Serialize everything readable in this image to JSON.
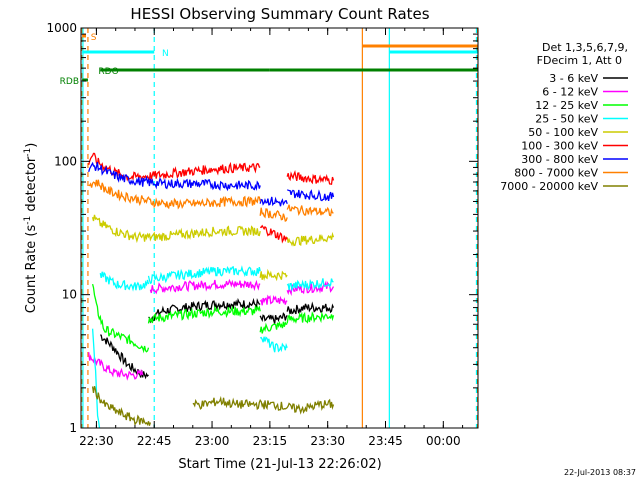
{
  "chart_data": {
    "type": "line",
    "title": "HESSI Observing Summary Count Rates",
    "xlabel": "Start Time (21-Jul-13 22:26:02)",
    "ylabel_main": "Count Rate (s",
    "ylabel_sup1": "-1",
    "ylabel_mid": " detector",
    "ylabel_sup2": "-1",
    "ylabel_end": ")",
    "y_scale": "log",
    "ylim": [
      1,
      1000
    ],
    "xlim_minutes": [
      0,
      103
    ],
    "x_ticks": [
      {
        "label": "22:30",
        "minutes": 4
      },
      {
        "label": "22:45",
        "minutes": 19
      },
      {
        "label": "23:00",
        "minutes": 34
      },
      {
        "label": "23:15",
        "minutes": 49
      },
      {
        "label": "23:30",
        "minutes": 64
      },
      {
        "label": "23:45",
        "minutes": 79
      },
      {
        "label": "00:00",
        "minutes": 94
      }
    ],
    "y_ticks": [
      {
        "label": "1",
        "value": 1
      },
      {
        "label": "10",
        "value": 10
      },
      {
        "label": "100",
        "value": 100
      },
      {
        "label": "1000",
        "value": 1000
      }
    ],
    "legend_header": [
      "Det 1,3,5,6,7,9,",
      "FDecim 1, Att 0"
    ],
    "legend_placement": "right",
    "series": [
      {
        "name": "3 - 6 keV",
        "color": "#000000",
        "segments": [
          [
            [
              5,
              5
            ],
            [
              8.5,
              4
            ],
            [
              12,
              3
            ],
            [
              16,
              2.5
            ],
            [
              17.5,
              2.5
            ]
          ],
          [
            [
              17.5,
              6.5
            ],
            [
              21,
              7.5
            ],
            [
              27,
              8
            ],
            [
              35,
              8.5
            ],
            [
              43,
              8.5
            ],
            [
              46.5,
              8.5
            ]
          ],
          [
            [
              46.5,
              6.5
            ],
            [
              51,
              6.5
            ],
            [
              53.5,
              7
            ]
          ],
          [
            [
              53.5,
              7.5
            ],
            [
              58,
              8
            ],
            [
              62,
              8
            ],
            [
              65.5,
              8
            ]
          ]
        ]
      },
      {
        "name": "6 - 12 keV",
        "color": "#ff00ff",
        "segments": [
          [
            [
              2,
              3.5
            ],
            [
              5,
              3
            ],
            [
              8.5,
              2.6
            ],
            [
              12,
              2.5
            ],
            [
              16,
              2.5
            ]
          ],
          [
            [
              18,
              11
            ],
            [
              25,
              11.5
            ],
            [
              35,
              12
            ],
            [
              46.5,
              12
            ]
          ],
          [
            [
              46.5,
              9
            ],
            [
              53.5,
              9
            ]
          ],
          [
            [
              53.5,
              11
            ],
            [
              65.5,
              11.5
            ]
          ]
        ]
      },
      {
        "name": "12 - 25 keV",
        "color": "#00ff00",
        "segments": [
          [
            [
              3,
              12
            ],
            [
              4,
              8
            ],
            [
              6,
              5.5
            ],
            [
              9,
              5
            ],
            [
              13,
              4.5
            ],
            [
              16.5,
              4
            ],
            [
              17.5,
              4
            ]
          ],
          [
            [
              17.5,
              6.5
            ],
            [
              25,
              7
            ],
            [
              35,
              7.5
            ],
            [
              46.5,
              7.5
            ]
          ],
          [
            [
              46.5,
              5.5
            ],
            [
              53.5,
              6
            ]
          ],
          [
            [
              53.5,
              6.5
            ],
            [
              65.5,
              7
            ]
          ]
        ]
      },
      {
        "name": "25 - 50 keV",
        "color": "#00ffff",
        "segments": [
          [
            [
              3,
              6
            ],
            [
              3.8,
              2.5
            ],
            [
              4.3,
              1.3
            ],
            [
              4.8,
              1
            ]
          ],
          [
            [
              5,
              14
            ],
            [
              9,
              12
            ],
            [
              14,
              11.5
            ],
            [
              17.5,
              12
            ]
          ],
          [
            [
              17.5,
              13
            ],
            [
              25,
              14
            ],
            [
              35,
              15
            ],
            [
              46.5,
              15
            ]
          ],
          [
            [
              46.5,
              5
            ],
            [
              50,
              4
            ],
            [
              53.5,
              4
            ]
          ],
          [
            [
              53.5,
              11.5
            ],
            [
              65.5,
              12.5
            ]
          ]
        ]
      },
      {
        "name": "50 - 100 keV",
        "color": "#cccc00",
        "segments": [
          [
            [
              3,
              38
            ],
            [
              5,
              34
            ],
            [
              9,
              30
            ],
            [
              14,
              27
            ],
            [
              19,
              27
            ],
            [
              25,
              28
            ],
            [
              35,
              30
            ],
            [
              46.5,
              30
            ]
          ],
          [
            [
              46.5,
              14
            ],
            [
              53.5,
              14
            ]
          ],
          [
            [
              53.5,
              25
            ],
            [
              60,
              26
            ],
            [
              65.5,
              27
            ]
          ]
        ]
      },
      {
        "name": "100 - 300 keV",
        "color": "#ff0000",
        "segments": [
          [
            [
              2,
              100
            ],
            [
              3,
              112
            ],
            [
              4,
              100
            ],
            [
              6,
              92
            ],
            [
              9,
              82
            ],
            [
              13,
              76
            ],
            [
              19,
              78
            ],
            [
              25,
              82
            ],
            [
              35,
              88
            ],
            [
              46.5,
              90
            ]
          ],
          [
            [
              46.5,
              32
            ],
            [
              51,
              28
            ],
            [
              53.5,
              26
            ]
          ],
          [
            [
              53.5,
              78
            ],
            [
              60,
              74
            ],
            [
              65.5,
              72
            ]
          ]
        ]
      },
      {
        "name": "300 - 800 keV",
        "color": "#0000ff",
        "segments": [
          [
            [
              2,
              90
            ],
            [
              4,
              92
            ],
            [
              7,
              82
            ],
            [
              11,
              74
            ],
            [
              16,
              70
            ],
            [
              22,
              68
            ],
            [
              30,
              68
            ],
            [
              40,
              66
            ],
            [
              46.5,
              66
            ]
          ],
          [
            [
              46.5,
              52
            ],
            [
              53.5,
              48
            ]
          ],
          [
            [
              53.5,
              58
            ],
            [
              65.5,
              54
            ]
          ]
        ]
      },
      {
        "name": "800 - 7000 keV",
        "color": "#ff8000",
        "segments": [
          [
            [
              2,
              68
            ],
            [
              4,
              70
            ],
            [
              7,
              60
            ],
            [
              11,
              55
            ],
            [
              16,
              51
            ],
            [
              22,
              48
            ],
            [
              30,
              48
            ],
            [
              40,
              50
            ],
            [
              46.5,
              50
            ]
          ],
          [
            [
              46.5,
              42
            ],
            [
              53.5,
              38
            ]
          ],
          [
            [
              53.5,
              44
            ],
            [
              65.5,
              41
            ]
          ]
        ]
      },
      {
        "name": "7000 - 20000 keV",
        "color": "#808000",
        "segments": [
          [
            [
              3,
              2
            ],
            [
              6,
              1.5
            ],
            [
              10,
              1.3
            ],
            [
              14,
              1.15
            ],
            [
              18,
              1.1
            ]
          ],
          [
            [
              29,
              1.5
            ],
            [
              32,
              1.5
            ],
            [
              36,
              1.6
            ],
            [
              40,
              1.5
            ],
            [
              44,
              1.5
            ],
            [
              50,
              1.5
            ],
            [
              55,
              1.4
            ],
            [
              58,
              1.4
            ],
            [
              62,
              1.5
            ],
            [
              65.5,
              1.5
            ]
          ]
        ]
      }
    ],
    "flag_lines": [
      {
        "label": "S",
        "color": "#ff8000",
        "y_rel": 0.02,
        "segments": [
          [
            0.3,
            1.3
          ]
        ],
        "label_at": 2
      },
      {
        "label": "N",
        "color": "#00ffff",
        "y_rel": 0.06,
        "segments": [
          [
            0.3,
            19
          ],
          [
            80,
            103
          ]
        ],
        "label_at": 20.5
      },
      {
        "label": "RDO",
        "color": "#008000",
        "y_rel": 0.105,
        "segments": [
          [
            5,
            49
          ],
          [
            49,
            55
          ],
          [
            55,
            103
          ]
        ],
        "label_at": 4
      },
      {
        "label": "RDB",
        "color": "#008000",
        "y_rel": 0.13,
        "segments": [
          [
            0.3,
            1.8
          ]
        ],
        "label_at": 0
      },
      {
        "label": "",
        "color": "#ff8000",
        "y_rel": 0.045,
        "segments": [
          [
            73,
            103
          ]
        ],
        "label_at": null
      }
    ],
    "vertical_lines": [
      {
        "minutes": 0.3,
        "color": "#ff8000",
        "style": "dash"
      },
      {
        "minutes": 0.5,
        "color": "#00ffff",
        "style": "solid"
      },
      {
        "minutes": 1.8,
        "color": "#ff8000",
        "style": "dash"
      },
      {
        "minutes": 19,
        "color": "#00ffff",
        "style": "dash"
      },
      {
        "minutes": 73,
        "color": "#ff8000",
        "style": "solid"
      },
      {
        "minutes": 80,
        "color": "#00ffff",
        "style": "solid"
      },
      {
        "minutes": 102.6,
        "color": "#00ffff",
        "style": "dash"
      },
      {
        "minutes": 102.9,
        "color": "#ff8000",
        "style": "dash"
      }
    ]
  },
  "timestamp": "22-Jul-2013 08:37"
}
